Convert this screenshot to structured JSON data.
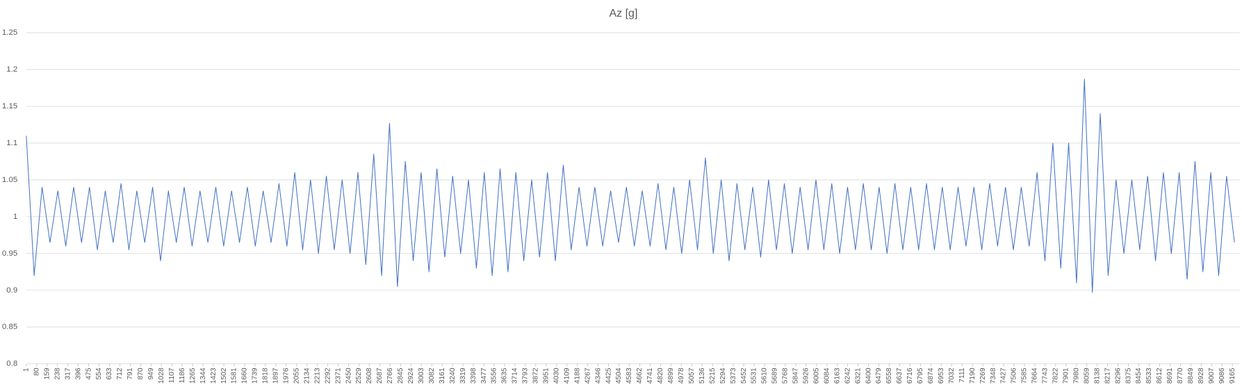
{
  "chart_data": {
    "type": "line",
    "title": "Az [g]",
    "color": "#4472c4",
    "grid": true,
    "xlim": [
      1,
      9220
    ],
    "xticks": [
      1,
      80,
      159,
      238,
      317,
      396,
      475,
      554,
      633,
      712,
      791,
      870,
      949,
      1028,
      1107,
      1186,
      1265,
      1344,
      1423,
      1502,
      1581,
      1660,
      1739,
      1818,
      1897,
      1976,
      2055,
      2134,
      2213,
      2292,
      2371,
      2450,
      2529,
      2608,
      2687,
      2766,
      2845,
      2924,
      3003,
      3082,
      3161,
      3240,
      3319,
      3398,
      3477,
      3556,
      3635,
      3714,
      3793,
      3872,
      3951,
      4030,
      4109,
      4188,
      4267,
      4346,
      4425,
      4504,
      4583,
      4662,
      4741,
      4820,
      4899,
      4978,
      5057,
      5136,
      5215,
      5294,
      5373,
      5452,
      5531,
      5610,
      5689,
      5768,
      5847,
      5926,
      6005,
      6084,
      6163,
      6242,
      6321,
      6400,
      6479,
      6558,
      6637,
      6716,
      6795,
      6874,
      6953,
      7032,
      7111,
      7190,
      7269,
      7348,
      7427,
      7506,
      7585,
      7664,
      7743,
      7822,
      7901,
      7980,
      8059,
      8138,
      8217,
      8296,
      8375,
      8454,
      8533,
      8612,
      8691,
      8770,
      8849,
      8928,
      9007,
      9086,
      9165
    ],
    "ylim": [
      0.8,
      1.25
    ],
    "yticks": [
      0.8,
      0.85,
      0.9,
      0.95,
      1,
      1.05,
      1.1,
      1.15,
      1.2,
      1.25
    ],
    "x": [
      1,
      61,
      121,
      181,
      241,
      301,
      361,
      421,
      481,
      541,
      601,
      661,
      721,
      781,
      841,
      901,
      961,
      1021,
      1081,
      1141,
      1201,
      1261,
      1321,
      1381,
      1441,
      1501,
      1561,
      1621,
      1681,
      1741,
      1801,
      1861,
      1921,
      1981,
      2041,
      2101,
      2161,
      2221,
      2281,
      2341,
      2401,
      2461,
      2521,
      2581,
      2641,
      2701,
      2761,
      2821,
      2881,
      2941,
      3001,
      3061,
      3121,
      3181,
      3241,
      3301,
      3361,
      3421,
      3481,
      3541,
      3601,
      3661,
      3721,
      3781,
      3841,
      3901,
      3961,
      4021,
      4081,
      4141,
      4201,
      4261,
      4321,
      4381,
      4441,
      4501,
      4561,
      4621,
      4681,
      4741,
      4801,
      4861,
      4921,
      4981,
      5041,
      5101,
      5161,
      5221,
      5281,
      5341,
      5401,
      5461,
      5521,
      5581,
      5641,
      5701,
      5761,
      5821,
      5881,
      5941,
      6001,
      6061,
      6121,
      6181,
      6241,
      6301,
      6361,
      6421,
      6481,
      6541,
      6601,
      6661,
      6721,
      6781,
      6841,
      6901,
      6961,
      7021,
      7081,
      7141,
      7201,
      7261,
      7321,
      7381,
      7441,
      7501,
      7561,
      7621,
      7681,
      7741,
      7801,
      7861,
      7921,
      7981,
      8041,
      8101,
      8161,
      8221,
      8281,
      8341,
      8401,
      8461,
      8521,
      8581,
      8641,
      8701,
      8761,
      8821,
      8881,
      8941,
      9001,
      9061,
      9121,
      9181
    ],
    "values": [
      1.11,
      0.92,
      1.04,
      0.965,
      1.035,
      0.96,
      1.04,
      0.965,
      1.04,
      0.955,
      1.035,
      0.965,
      1.045,
      0.955,
      1.035,
      0.965,
      1.04,
      0.94,
      1.035,
      0.965,
      1.04,
      0.96,
      1.035,
      0.965,
      1.04,
      0.96,
      1.035,
      0.965,
      1.04,
      0.96,
      1.035,
      0.965,
      1.045,
      0.96,
      1.06,
      0.955,
      1.05,
      0.95,
      1.055,
      0.955,
      1.05,
      0.95,
      1.06,
      0.935,
      1.085,
      0.92,
      1.127,
      0.905,
      1.075,
      0.94,
      1.06,
      0.925,
      1.065,
      0.945,
      1.055,
      0.95,
      1.05,
      0.93,
      1.06,
      0.92,
      1.065,
      0.925,
      1.06,
      0.94,
      1.05,
      0.945,
      1.06,
      0.94,
      1.07,
      0.955,
      1.04,
      0.96,
      1.04,
      0.96,
      1.035,
      0.965,
      1.04,
      0.96,
      1.035,
      0.96,
      1.045,
      0.955,
      1.04,
      0.95,
      1.05,
      0.955,
      1.08,
      0.95,
      1.05,
      0.94,
      1.045,
      0.955,
      1.04,
      0.945,
      1.05,
      0.955,
      1.045,
      0.95,
      1.04,
      0.955,
      1.05,
      0.955,
      1.045,
      0.95,
      1.04,
      0.955,
      1.045,
      0.955,
      1.04,
      0.95,
      1.045,
      0.955,
      1.04,
      0.955,
      1.045,
      0.955,
      1.04,
      0.955,
      1.04,
      0.96,
      1.04,
      0.955,
      1.045,
      0.96,
      1.04,
      0.955,
      1.04,
      0.96,
      1.06,
      0.94,
      1.1,
      0.93,
      1.1,
      0.91,
      1.187,
      0.897,
      1.14,
      0.92,
      1.05,
      0.95,
      1.05,
      0.955,
      1.055,
      0.94,
      1.06,
      0.95,
      1.06,
      0.915,
      1.075,
      0.925,
      1.06,
      0.92,
      1.055,
      0.965
    ]
  }
}
